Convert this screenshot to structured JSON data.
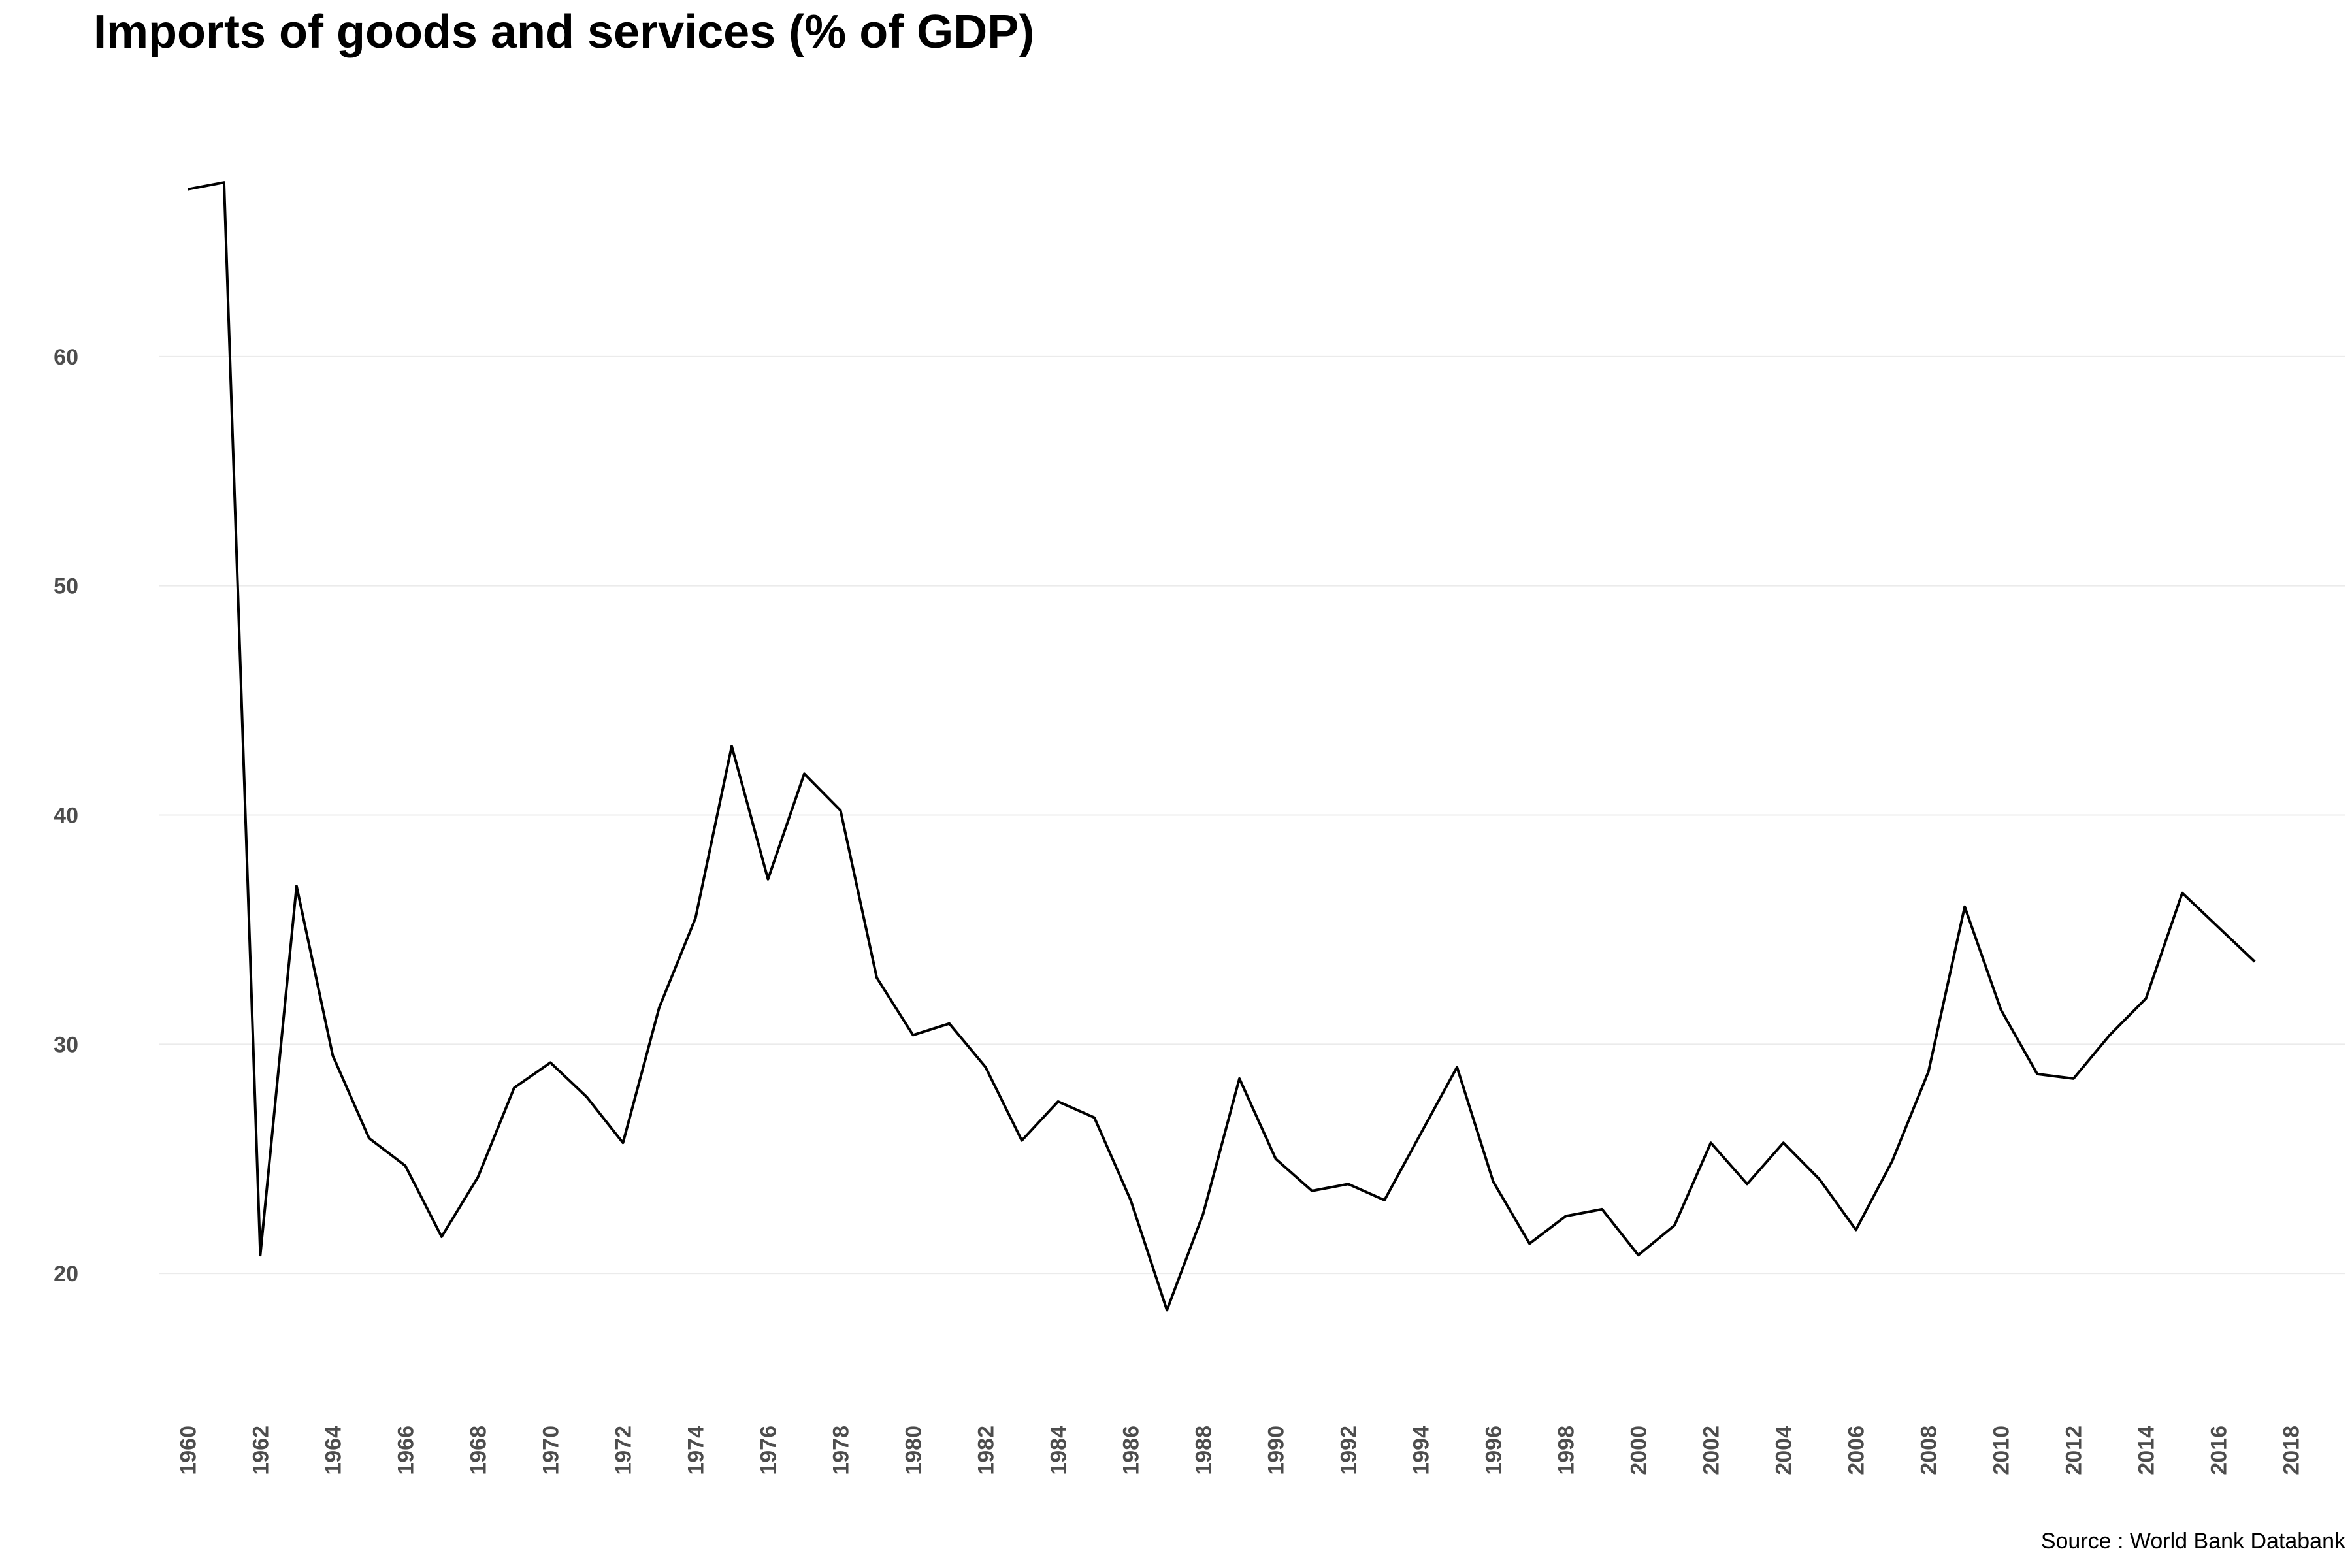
{
  "chart_data": {
    "type": "line",
    "title": "Imports of goods and services (% of GDP)",
    "caption": "Source : World Bank Databank",
    "xlabel": "",
    "ylabel": "",
    "xlim": [
      1959.2,
      2019.5
    ],
    "ylim": [
      15.7,
      70
    ],
    "x_ticks": [
      1960,
      1962,
      1964,
      1966,
      1968,
      1970,
      1972,
      1974,
      1976,
      1978,
      1980,
      1982,
      1984,
      1986,
      1988,
      1990,
      1992,
      1994,
      1996,
      1998,
      2000,
      2002,
      2004,
      2006,
      2008,
      2010,
      2012,
      2014,
      2016,
      2018
    ],
    "y_ticks": [
      20,
      30,
      40,
      50,
      60
    ],
    "grid": "horizontal",
    "line_color": "#000000",
    "series": [
      {
        "x": [
          1960,
          1961,
          1962,
          1963,
          1964,
          1965,
          1966,
          1967,
          1968,
          1969,
          1970,
          1971,
          1972,
          1973,
          1974,
          1975,
          1976,
          1977,
          1978,
          1979,
          1980,
          1981,
          1982,
          1983,
          1984,
          1985,
          1986,
          1987,
          1988,
          1989,
          1990,
          1991,
          1992,
          1993,
          1994,
          1995,
          1996,
          1997,
          1998,
          1999,
          2000,
          2001,
          2002,
          2003,
          2004,
          2005,
          2006,
          2007,
          2008,
          2009,
          2010,
          2011,
          2012,
          2013,
          2014,
          2015,
          2016,
          2017
        ],
        "values": [
          67.3,
          67.6,
          20.8,
          36.9,
          29.5,
          25.9,
          24.7,
          21.6,
          24.2,
          28.1,
          29.2,
          27.7,
          25.7,
          31.6,
          35.5,
          43.0,
          37.2,
          41.8,
          40.2,
          32.9,
          30.4,
          30.9,
          29.0,
          25.8,
          27.5,
          26.8,
          23.2,
          18.4,
          22.6,
          28.5,
          25.0,
          23.6,
          23.9,
          23.2,
          26.1,
          29.0,
          24.0,
          21.3,
          22.5,
          22.8,
          20.8,
          22.1,
          25.7,
          23.9,
          25.7,
          24.1,
          21.9,
          24.9,
          28.8,
          36.0,
          31.5,
          28.7,
          28.5,
          30.4,
          32.0,
          36.6,
          35.1,
          33.6
        ]
      }
    ]
  }
}
